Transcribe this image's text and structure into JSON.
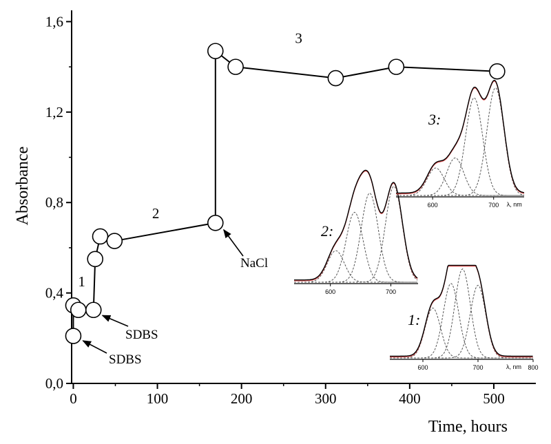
{
  "chart_data": {
    "type": "scatter",
    "xlabel": "Time, hours",
    "ylabel": "Absorbance",
    "xlim": [
      -2,
      550
    ],
    "ylim": [
      0,
      1.65
    ],
    "x_ticks": [
      0,
      100,
      200,
      300,
      400,
      500
    ],
    "y_ticks": [
      {
        "value": 0.0,
        "label": "0,0"
      },
      {
        "value": 0.4,
        "label": "0,4"
      },
      {
        "value": 0.8,
        "label": "0,8"
      },
      {
        "value": 1.2,
        "label": "1,2"
      },
      {
        "value": 1.6,
        "label": "1,6"
      }
    ],
    "grid": false,
    "marker": "open-circle",
    "points": [
      {
        "x": 0,
        "y": 0.21
      },
      {
        "x": 0,
        "y": 0.345
      },
      {
        "x": 6,
        "y": 0.325
      },
      {
        "x": 24,
        "y": 0.325
      },
      {
        "x": 26,
        "y": 0.55
      },
      {
        "x": 32,
        "y": 0.65
      },
      {
        "x": 49,
        "y": 0.63
      },
      {
        "x": 169,
        "y": 0.71
      },
      {
        "x": 169,
        "y": 1.47
      },
      {
        "x": 193,
        "y": 1.4
      },
      {
        "x": 312,
        "y": 1.35
      },
      {
        "x": 384,
        "y": 1.4
      },
      {
        "x": 504,
        "y": 1.38
      }
    ],
    "segments": [
      {
        "label": "1",
        "label_pos": {
          "x": 10,
          "y": 0.43
        },
        "points": [
          [
            0,
            0.21
          ],
          [
            0,
            0.345
          ]
        ]
      },
      {
        "label": "",
        "points": [
          [
            24,
            0.325
          ],
          [
            26,
            0.55
          ],
          [
            32,
            0.65
          ]
        ]
      },
      {
        "label": "2",
        "label_pos": {
          "x": 98,
          "y": 0.73
        },
        "points": [
          [
            49,
            0.63
          ],
          [
            169,
            0.71
          ]
        ]
      },
      {
        "label": "",
        "points": [
          [
            169,
            0.71
          ],
          [
            169,
            1.47
          ]
        ]
      },
      {
        "label": "3",
        "label_pos": {
          "x": 268,
          "y": 1.505
        },
        "points": [
          [
            169,
            1.47
          ],
          [
            193,
            1.4
          ],
          [
            312,
            1.35
          ],
          [
            384,
            1.4
          ],
          [
            504,
            1.38
          ]
        ]
      }
    ],
    "annotations": [
      {
        "text": "SDBS",
        "target": {
          "x": 0,
          "y": 0.21
        }
      },
      {
        "text": "SDBS",
        "target": {
          "x": 24,
          "y": 0.325
        }
      },
      {
        "text": "NaCl",
        "target": {
          "x": 169,
          "y": 0.71
        }
      }
    ],
    "insets": [
      {
        "label": "1:",
        "x_unit_label": "λ, nm",
        "x_ticks": [
          600,
          700,
          800
        ],
        "xlim": [
          540,
          800
        ],
        "peaks_nm": [
          618,
          651,
          672,
          700
        ],
        "peak_heights": [
          0.55,
          0.82,
          0.98,
          0.8
        ]
      },
      {
        "label": "2:",
        "x_unit_label": "",
        "x_ticks": [
          600,
          700
        ],
        "xlim": [
          540,
          745
        ],
        "peaks_nm": [
          609,
          640,
          665,
          705
        ],
        "peak_heights": [
          0.28,
          0.62,
          0.79,
          0.85
        ]
      },
      {
        "label": "3:",
        "x_unit_label": "λ, nm",
        "x_ticks": [
          600,
          700
        ],
        "xlim": [
          540,
          750
        ],
        "peaks_nm": [
          605,
          637,
          668,
          703
        ],
        "peak_heights": [
          0.22,
          0.3,
          0.78,
          0.86
        ]
      }
    ]
  }
}
